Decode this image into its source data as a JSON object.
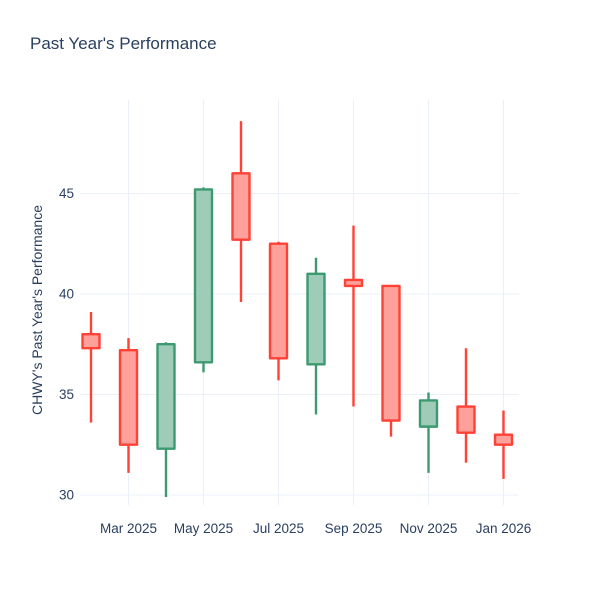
{
  "title": "Past Year's Performance",
  "y_axis_title": "CHWY's Past Year's Performance",
  "colors": {
    "background": "#ffffff",
    "text": "#2a3f5f",
    "grid": "#ebf0f8",
    "increasing_line": "#3D9970",
    "increasing_fill": "#9ECCB8",
    "decreasing_line": "#FF4136",
    "decreasing_fill": "#FFA09B"
  },
  "chart_data": {
    "type": "candlestick",
    "title": "Past Year's Performance",
    "xlabel": "",
    "ylabel": "CHWY's Past Year's Performance",
    "categories": [
      "Feb 2025",
      "Mar 2025",
      "Apr 2025",
      "May 2025",
      "Jun 2025",
      "Jul 2025",
      "Aug 2025",
      "Sep 2025",
      "Oct 2025",
      "Nov 2025",
      "Dec 2025",
      "Jan 2026"
    ],
    "series": [
      {
        "name": "CHWY",
        "open": [
          38.0,
          37.2,
          32.3,
          36.6,
          46.0,
          42.5,
          36.5,
          40.7,
          40.4,
          33.4,
          34.4,
          33.0
        ],
        "high": [
          39.1,
          37.8,
          37.6,
          45.3,
          48.6,
          42.6,
          41.8,
          43.4,
          40.4,
          35.1,
          37.3,
          34.2
        ],
        "low": [
          33.6,
          31.1,
          29.9,
          36.1,
          39.6,
          35.7,
          34.0,
          34.4,
          32.9,
          31.1,
          31.6,
          30.8
        ],
        "close": [
          37.3,
          32.5,
          37.5,
          45.2,
          42.7,
          36.8,
          41.0,
          40.4,
          33.7,
          34.7,
          33.1,
          32.5
        ]
      }
    ],
    "y_ticks": [
      30,
      35,
      40,
      45
    ],
    "x_tick_labels": [
      "Mar 2025",
      "May 2025",
      "Jul 2025",
      "Sep 2025",
      "Nov 2025",
      "Jan 2026"
    ],
    "ylim": [
      29.5,
      49.65
    ],
    "grid": true,
    "legend": false
  }
}
